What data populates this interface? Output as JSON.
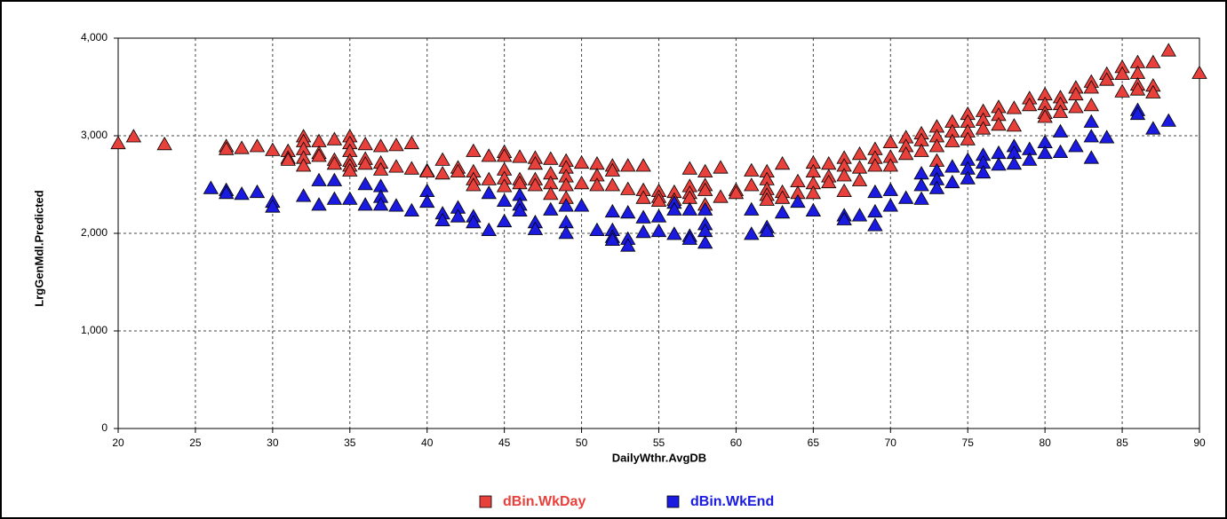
{
  "chart_data": {
    "type": "scatter",
    "marker": "triangle",
    "x_label": "DailyWthr.AvgDB",
    "y_label": "LrgGenMdl.Predicted",
    "xlim": [
      20,
      90
    ],
    "xticks": [
      20,
      25,
      30,
      35,
      40,
      45,
      50,
      55,
      60,
      65,
      70,
      75,
      80,
      85,
      90
    ],
    "ylim": [
      0,
      4000
    ],
    "yticks": [
      0,
      {
        "value": 1000,
        "label": "1,000"
      },
      {
        "value": 2000,
        "label": "2,000"
      },
      {
        "value": 3000,
        "label": "3,000"
      },
      {
        "value": 4000,
        "label": "4,000"
      }
    ],
    "grid": true,
    "legend": "bottom",
    "series": [
      {
        "name": "dBin.WkDay",
        "color": "#e8413c",
        "x": [
          20,
          21,
          23,
          27,
          27,
          28,
          29,
          30,
          31,
          31,
          31,
          32,
          32,
          32,
          32,
          32,
          33,
          33,
          33,
          34,
          34,
          34,
          35,
          35,
          35,
          35,
          35,
          35,
          36,
          36,
          36,
          37,
          37,
          37,
          38,
          38,
          39,
          39,
          40,
          40,
          41,
          41,
          42,
          42,
          43,
          43,
          43,
          43,
          44,
          44,
          45,
          45,
          45,
          45,
          45,
          46,
          46,
          46,
          47,
          47,
          47,
          47,
          48,
          48,
          48,
          48,
          49,
          49,
          49,
          49,
          49,
          50,
          50,
          51,
          51,
          51,
          52,
          52,
          52,
          53,
          53,
          54,
          54,
          54,
          55,
          55,
          55,
          56,
          56,
          57,
          57,
          57,
          57,
          58,
          58,
          58,
          58,
          59,
          59,
          60,
          60,
          61,
          61,
          62,
          62,
          62,
          62,
          62,
          63,
          63,
          63,
          64,
          64,
          65,
          65,
          65,
          65,
          66,
          66,
          66,
          67,
          67,
          67,
          67,
          68,
          68,
          68,
          69,
          69,
          69,
          70,
          70,
          70,
          71,
          71,
          71,
          72,
          72,
          72,
          73,
          73,
          73,
          73,
          74,
          74,
          74,
          75,
          75,
          75,
          75,
          76,
          76,
          76,
          77,
          77,
          77,
          78,
          78,
          79,
          79,
          80,
          80,
          80,
          80,
          81,
          81,
          81,
          82,
          82,
          82,
          83,
          83,
          83,
          84,
          84,
          85,
          85,
          85,
          86,
          86,
          86,
          86,
          87,
          87,
          87,
          88,
          90
        ],
        "values": [
          2930,
          3000,
          2920,
          2900,
          2870,
          2880,
          2900,
          2860,
          2850,
          2780,
          2760,
          3000,
          2950,
          2870,
          2780,
          2700,
          2950,
          2830,
          2800,
          2970,
          2760,
          2720,
          3000,
          2930,
          2850,
          2750,
          2700,
          2650,
          2920,
          2770,
          2720,
          2900,
          2730,
          2660,
          2910,
          2690,
          2930,
          2670,
          2650,
          2640,
          2760,
          2620,
          2680,
          2640,
          2850,
          2640,
          2560,
          2500,
          2800,
          2560,
          2840,
          2800,
          2660,
          2570,
          2490,
          2790,
          2560,
          2520,
          2780,
          2720,
          2560,
          2500,
          2770,
          2620,
          2520,
          2410,
          2750,
          2680,
          2590,
          2500,
          2370,
          2730,
          2520,
          2720,
          2600,
          2500,
          2700,
          2650,
          2500,
          2700,
          2460,
          2700,
          2450,
          2370,
          2440,
          2380,
          2340,
          2430,
          2350,
          2670,
          2490,
          2420,
          2370,
          2640,
          2500,
          2450,
          2300,
          2680,
          2380,
          2450,
          2420,
          2650,
          2500,
          2640,
          2560,
          2460,
          2400,
          2350,
          2720,
          2430,
          2370,
          2540,
          2420,
          2730,
          2640,
          2520,
          2420,
          2720,
          2590,
          2530,
          2780,
          2700,
          2600,
          2440,
          2820,
          2680,
          2550,
          2870,
          2780,
          2700,
          2940,
          2790,
          2700,
          2990,
          2900,
          2820,
          3030,
          2960,
          2850,
          3100,
          3000,
          2900,
          2750,
          3150,
          3050,
          2950,
          3230,
          3150,
          3050,
          2970,
          3260,
          3170,
          3080,
          3300,
          3220,
          3120,
          3290,
          3110,
          3390,
          3320,
          3430,
          3330,
          3240,
          3200,
          3400,
          3330,
          3250,
          3500,
          3430,
          3300,
          3560,
          3500,
          3320,
          3640,
          3580,
          3710,
          3640,
          3460,
          3760,
          3650,
          3530,
          3480,
          3760,
          3520,
          3450,
          3880,
          3650
        ]
      },
      {
        "name": "dBin.WkEnd",
        "color": "#1a1ae0",
        "x": [
          26,
          27,
          27,
          28,
          29,
          30,
          30,
          32,
          33,
          33,
          34,
          34,
          35,
          36,
          36,
          37,
          37,
          37,
          38,
          39,
          40,
          40,
          41,
          41,
          42,
          42,
          43,
          43,
          44,
          44,
          45,
          45,
          46,
          46,
          46,
          47,
          47,
          48,
          49,
          49,
          49,
          50,
          51,
          52,
          52,
          52,
          52,
          53,
          53,
          53,
          54,
          54,
          55,
          55,
          56,
          56,
          56,
          57,
          57,
          57,
          58,
          58,
          58,
          58,
          61,
          61,
          62,
          62,
          63,
          64,
          65,
          67,
          67,
          68,
          69,
          69,
          69,
          70,
          70,
          71,
          72,
          72,
          72,
          73,
          73,
          73,
          74,
          74,
          75,
          75,
          75,
          76,
          76,
          76,
          77,
          77,
          78,
          78,
          78,
          79,
          79,
          80,
          80,
          81,
          81,
          82,
          83,
          83,
          83,
          84,
          86,
          86,
          87,
          88
        ],
        "values": [
          2470,
          2450,
          2420,
          2410,
          2430,
          2330,
          2280,
          2390,
          2550,
          2300,
          2550,
          2360,
          2360,
          2510,
          2300,
          2490,
          2380,
          2300,
          2290,
          2240,
          2440,
          2330,
          2210,
          2140,
          2270,
          2180,
          2180,
          2120,
          2420,
          2040,
          2340,
          2130,
          2400,
          2300,
          2240,
          2120,
          2050,
          2250,
          2290,
          2120,
          2010,
          2290,
          2040,
          2230,
          2040,
          1970,
          1940,
          2220,
          1950,
          1880,
          2170,
          2020,
          2180,
          2030,
          2320,
          2250,
          2000,
          2250,
          1980,
          1950,
          2250,
          2100,
          2030,
          1910,
          2250,
          2000,
          2070,
          2030,
          2220,
          2330,
          2240,
          2190,
          2150,
          2190,
          2430,
          2230,
          2090,
          2450,
          2290,
          2370,
          2620,
          2500,
          2360,
          2650,
          2560,
          2470,
          2690,
          2530,
          2760,
          2670,
          2570,
          2810,
          2730,
          2630,
          2830,
          2710,
          2900,
          2830,
          2720,
          2870,
          2760,
          2940,
          2830,
          3050,
          2840,
          2900,
          3150,
          3000,
          2780,
          2990,
          3270,
          3230,
          3080,
          3160
        ]
      }
    ]
  }
}
